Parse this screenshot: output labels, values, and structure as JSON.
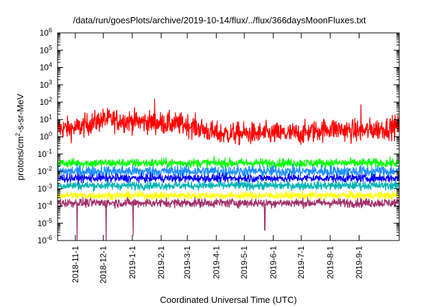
{
  "chart_data": {
    "type": "line",
    "title": "/data/run/goesPlots/archive/2019-10-14/flux/../flux/366daysMoonFluxes.txt",
    "xlabel": "Coordinated Universal Time (UTC)",
    "ylabel": "protons/cm²-s-sr-MeV",
    "ylabel_parts": {
      "base": "protons/cm",
      "sup": "2",
      "rest": "-s-sr-MeV"
    },
    "y_scale": "log",
    "ylim": [
      1e-06,
      1000000.0
    ],
    "y_tick_exponents": [
      -6,
      -5,
      -4,
      -3,
      -2,
      -1,
      0,
      1,
      2,
      3,
      4,
      5,
      6
    ],
    "y_tick_base": "10",
    "xlim": [
      "2018-10-13",
      "2019-10-14"
    ],
    "x_ticks": [
      {
        "label": "2018-11-1",
        "date": "2018-11-01"
      },
      {
        "label": "2018-12-1",
        "date": "2018-12-01"
      },
      {
        "label": "2019-1-1",
        "date": "2019-01-01"
      },
      {
        "label": "2019-2-1",
        "date": "2019-02-01"
      },
      {
        "label": "2019-3-1",
        "date": "2019-03-01"
      },
      {
        "label": "2019-4-1",
        "date": "2019-04-01"
      },
      {
        "label": "2019-5-1",
        "date": "2019-05-01"
      },
      {
        "label": "2019-6-1",
        "date": "2019-06-01"
      },
      {
        "label": "2019-7-1",
        "date": "2019-07-01"
      },
      {
        "label": "2019-8-1",
        "date": "2019-08-01"
      },
      {
        "label": "2019-9-1",
        "date": "2019-09-01"
      }
    ],
    "grid": false,
    "legend": "none",
    "series": [
      {
        "color": "#ff0000",
        "x": [
          "2018-10-13",
          "2018-11-01",
          "2018-12-01",
          "2019-01-01",
          "2019-02-01",
          "2019-03-01",
          "2019-04-01",
          "2019-05-01",
          "2019-06-01",
          "2019-07-01",
          "2019-08-01",
          "2019-09-01",
          "2019-10-14"
        ],
        "y": [
          3,
          3,
          10,
          8,
          6,
          5,
          1.5,
          1.5,
          1.5,
          1.5,
          3,
          2,
          4
        ],
        "spikes": [
          {
            "x": "2019-01-25",
            "y": 150
          },
          {
            "x": "2019-09-03",
            "y": 70
          }
        ]
      },
      {
        "color": "#00ff00",
        "x": [
          "2018-10-13",
          "2018-12-01",
          "2019-02-01",
          "2019-04-01",
          "2019-06-01",
          "2019-08-01",
          "2019-10-14"
        ],
        "y": [
          0.03,
          0.03,
          0.03,
          0.03,
          0.03,
          0.03,
          0.03
        ],
        "spikes": []
      },
      {
        "color": "#1e90ff",
        "x": [
          "2018-10-13",
          "2018-12-01",
          "2019-02-01",
          "2019-04-01",
          "2019-06-01",
          "2019-08-01",
          "2019-10-14"
        ],
        "y": [
          0.01,
          0.01,
          0.01,
          0.01,
          0.01,
          0.01,
          0.01
        ],
        "spikes": []
      },
      {
        "color": "#0000ff",
        "x": [
          "2018-10-13",
          "2018-12-01",
          "2019-02-01",
          "2019-04-01",
          "2019-06-01",
          "2019-08-01",
          "2019-10-14"
        ],
        "y": [
          0.004,
          0.004,
          0.004,
          0.004,
          0.004,
          0.004,
          0.004
        ],
        "spikes": []
      },
      {
        "color": "#00b4b4",
        "x": [
          "2018-10-13",
          "2018-12-01",
          "2019-02-01",
          "2019-04-01",
          "2019-06-01",
          "2019-08-01",
          "2019-10-14"
        ],
        "y": [
          0.0015,
          0.0015,
          0.0015,
          0.0015,
          0.0015,
          0.0015,
          0.0015
        ],
        "spikes": []
      },
      {
        "color": "#ffff00",
        "x": [
          "2018-10-13",
          "2018-12-01",
          "2019-02-01",
          "2019-04-01",
          "2019-06-01",
          "2019-08-01",
          "2019-10-14"
        ],
        "y": [
          0.0004,
          0.0004,
          0.0004,
          0.0004,
          0.0004,
          0.0004,
          0.0004
        ],
        "spikes": []
      },
      {
        "color": "#a0306a",
        "x": [
          "2018-10-13",
          "2018-12-01",
          "2019-02-01",
          "2019-04-01",
          "2019-06-01",
          "2019-08-01",
          "2019-10-14"
        ],
        "y": [
          0.00015,
          0.00015,
          0.00015,
          0.00015,
          0.00015,
          0.00015,
          0.00015
        ],
        "spikes": [
          {
            "x": "2018-11-03",
            "y": 1e-06
          },
          {
            "x": "2018-12-04",
            "y": 1e-06
          },
          {
            "x": "2019-01-02",
            "y": 2e-06
          },
          {
            "x": "2019-05-23",
            "y": 4e-06
          }
        ]
      }
    ]
  }
}
